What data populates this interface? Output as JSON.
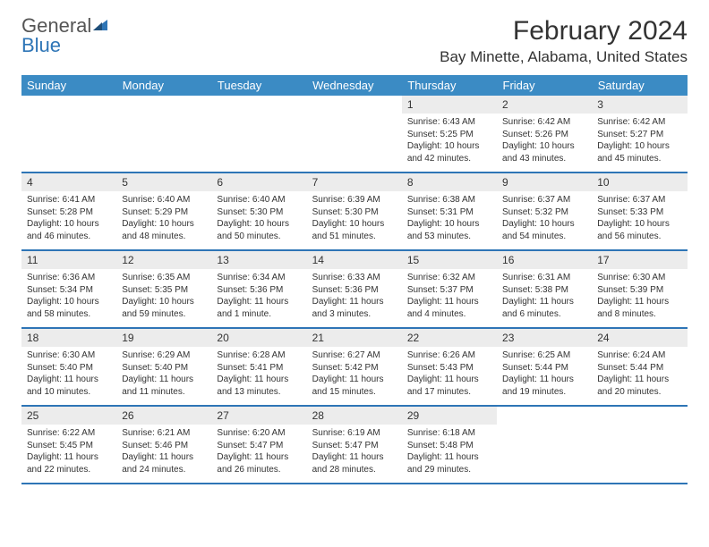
{
  "brand": {
    "part1": "General",
    "part2": "Blue"
  },
  "title": "February 2024",
  "location": "Bay Minette, Alabama, United States",
  "accent_color": "#3b8bc4",
  "border_color": "#2e75b6",
  "daynum_bg": "#ececec",
  "weekdays": [
    "Sunday",
    "Monday",
    "Tuesday",
    "Wednesday",
    "Thursday",
    "Friday",
    "Saturday"
  ],
  "weeks": [
    {
      "days": [
        null,
        null,
        null,
        null,
        {
          "n": "1",
          "sr": "Sunrise: 6:43 AM",
          "ss": "Sunset: 5:25 PM",
          "dl1": "Daylight: 10 hours",
          "dl2": "and 42 minutes."
        },
        {
          "n": "2",
          "sr": "Sunrise: 6:42 AM",
          "ss": "Sunset: 5:26 PM",
          "dl1": "Daylight: 10 hours",
          "dl2": "and 43 minutes."
        },
        {
          "n": "3",
          "sr": "Sunrise: 6:42 AM",
          "ss": "Sunset: 5:27 PM",
          "dl1": "Daylight: 10 hours",
          "dl2": "and 45 minutes."
        }
      ]
    },
    {
      "days": [
        {
          "n": "4",
          "sr": "Sunrise: 6:41 AM",
          "ss": "Sunset: 5:28 PM",
          "dl1": "Daylight: 10 hours",
          "dl2": "and 46 minutes."
        },
        {
          "n": "5",
          "sr": "Sunrise: 6:40 AM",
          "ss": "Sunset: 5:29 PM",
          "dl1": "Daylight: 10 hours",
          "dl2": "and 48 minutes."
        },
        {
          "n": "6",
          "sr": "Sunrise: 6:40 AM",
          "ss": "Sunset: 5:30 PM",
          "dl1": "Daylight: 10 hours",
          "dl2": "and 50 minutes."
        },
        {
          "n": "7",
          "sr": "Sunrise: 6:39 AM",
          "ss": "Sunset: 5:30 PM",
          "dl1": "Daylight: 10 hours",
          "dl2": "and 51 minutes."
        },
        {
          "n": "8",
          "sr": "Sunrise: 6:38 AM",
          "ss": "Sunset: 5:31 PM",
          "dl1": "Daylight: 10 hours",
          "dl2": "and 53 minutes."
        },
        {
          "n": "9",
          "sr": "Sunrise: 6:37 AM",
          "ss": "Sunset: 5:32 PM",
          "dl1": "Daylight: 10 hours",
          "dl2": "and 54 minutes."
        },
        {
          "n": "10",
          "sr": "Sunrise: 6:37 AM",
          "ss": "Sunset: 5:33 PM",
          "dl1": "Daylight: 10 hours",
          "dl2": "and 56 minutes."
        }
      ]
    },
    {
      "days": [
        {
          "n": "11",
          "sr": "Sunrise: 6:36 AM",
          "ss": "Sunset: 5:34 PM",
          "dl1": "Daylight: 10 hours",
          "dl2": "and 58 minutes."
        },
        {
          "n": "12",
          "sr": "Sunrise: 6:35 AM",
          "ss": "Sunset: 5:35 PM",
          "dl1": "Daylight: 10 hours",
          "dl2": "and 59 minutes."
        },
        {
          "n": "13",
          "sr": "Sunrise: 6:34 AM",
          "ss": "Sunset: 5:36 PM",
          "dl1": "Daylight: 11 hours",
          "dl2": "and 1 minute."
        },
        {
          "n": "14",
          "sr": "Sunrise: 6:33 AM",
          "ss": "Sunset: 5:36 PM",
          "dl1": "Daylight: 11 hours",
          "dl2": "and 3 minutes."
        },
        {
          "n": "15",
          "sr": "Sunrise: 6:32 AM",
          "ss": "Sunset: 5:37 PM",
          "dl1": "Daylight: 11 hours",
          "dl2": "and 4 minutes."
        },
        {
          "n": "16",
          "sr": "Sunrise: 6:31 AM",
          "ss": "Sunset: 5:38 PM",
          "dl1": "Daylight: 11 hours",
          "dl2": "and 6 minutes."
        },
        {
          "n": "17",
          "sr": "Sunrise: 6:30 AM",
          "ss": "Sunset: 5:39 PM",
          "dl1": "Daylight: 11 hours",
          "dl2": "and 8 minutes."
        }
      ]
    },
    {
      "days": [
        {
          "n": "18",
          "sr": "Sunrise: 6:30 AM",
          "ss": "Sunset: 5:40 PM",
          "dl1": "Daylight: 11 hours",
          "dl2": "and 10 minutes."
        },
        {
          "n": "19",
          "sr": "Sunrise: 6:29 AM",
          "ss": "Sunset: 5:40 PM",
          "dl1": "Daylight: 11 hours",
          "dl2": "and 11 minutes."
        },
        {
          "n": "20",
          "sr": "Sunrise: 6:28 AM",
          "ss": "Sunset: 5:41 PM",
          "dl1": "Daylight: 11 hours",
          "dl2": "and 13 minutes."
        },
        {
          "n": "21",
          "sr": "Sunrise: 6:27 AM",
          "ss": "Sunset: 5:42 PM",
          "dl1": "Daylight: 11 hours",
          "dl2": "and 15 minutes."
        },
        {
          "n": "22",
          "sr": "Sunrise: 6:26 AM",
          "ss": "Sunset: 5:43 PM",
          "dl1": "Daylight: 11 hours",
          "dl2": "and 17 minutes."
        },
        {
          "n": "23",
          "sr": "Sunrise: 6:25 AM",
          "ss": "Sunset: 5:44 PM",
          "dl1": "Daylight: 11 hours",
          "dl2": "and 19 minutes."
        },
        {
          "n": "24",
          "sr": "Sunrise: 6:24 AM",
          "ss": "Sunset: 5:44 PM",
          "dl1": "Daylight: 11 hours",
          "dl2": "and 20 minutes."
        }
      ]
    },
    {
      "days": [
        {
          "n": "25",
          "sr": "Sunrise: 6:22 AM",
          "ss": "Sunset: 5:45 PM",
          "dl1": "Daylight: 11 hours",
          "dl2": "and 22 minutes."
        },
        {
          "n": "26",
          "sr": "Sunrise: 6:21 AM",
          "ss": "Sunset: 5:46 PM",
          "dl1": "Daylight: 11 hours",
          "dl2": "and 24 minutes."
        },
        {
          "n": "27",
          "sr": "Sunrise: 6:20 AM",
          "ss": "Sunset: 5:47 PM",
          "dl1": "Daylight: 11 hours",
          "dl2": "and 26 minutes."
        },
        {
          "n": "28",
          "sr": "Sunrise: 6:19 AM",
          "ss": "Sunset: 5:47 PM",
          "dl1": "Daylight: 11 hours",
          "dl2": "and 28 minutes."
        },
        {
          "n": "29",
          "sr": "Sunrise: 6:18 AM",
          "ss": "Sunset: 5:48 PM",
          "dl1": "Daylight: 11 hours",
          "dl2": "and 29 minutes."
        },
        null,
        null
      ]
    }
  ]
}
